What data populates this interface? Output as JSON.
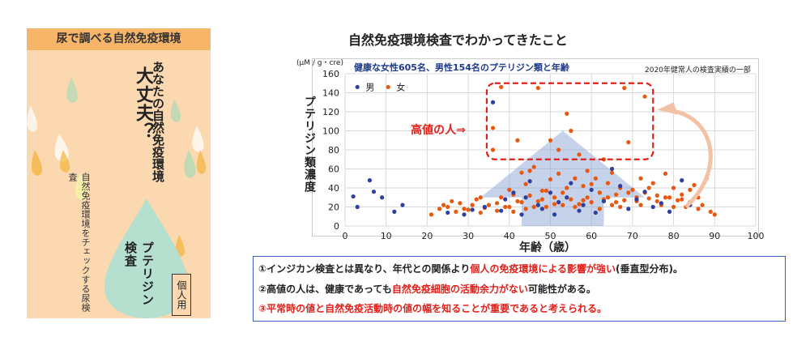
{
  "leaflet": {
    "header": "尿で調べる自然免疫環境",
    "big_text": "大丈夫？",
    "mid_text": "あなたの自然免疫環境",
    "small_text": "自然免疫環境をチェックする尿検査",
    "bold_text": "プテリジン検査",
    "badge": "個人用",
    "colors": {
      "background": "#fbd8b0",
      "header": "#f7b569",
      "drop_large": "#b5dfcf"
    }
  },
  "chart": {
    "title": "自然免疫環境検査でわかってきたこと",
    "unit": "(μM / g・cre)",
    "subtitle": "健康な女性605名、男性154名のプテリジン類と年齢",
    "note": "2020年健常人の検査実績の一部",
    "ylabel": "プテリジン類濃度",
    "xlabel": "年齢（歳）",
    "annotation": "高値の人⇒",
    "legend_male": "男",
    "legend_female": "女"
  },
  "chart_data": {
    "type": "scatter",
    "xlabel": "年齢（歳）",
    "ylabel": "プテリジン類濃度",
    "xlim": [
      0,
      100
    ],
    "ylim": [
      0,
      160
    ],
    "xticks": [
      0,
      10,
      20,
      30,
      40,
      50,
      60,
      70,
      80,
      90,
      100
    ],
    "yticks": [
      0,
      20,
      40,
      60,
      80,
      100,
      120,
      140,
      160
    ],
    "grid": true,
    "legend_position": "top-left",
    "series": [
      {
        "name": "男",
        "color": "#2e3f9e",
        "points": [
          [
            2,
            31
          ],
          [
            3,
            20
          ],
          [
            6,
            48
          ],
          [
            7,
            36
          ],
          [
            9,
            30
          ],
          [
            12,
            15
          ],
          [
            14,
            22
          ],
          [
            25,
            14
          ],
          [
            29,
            12
          ],
          [
            31,
            17
          ],
          [
            34,
            20
          ],
          [
            36,
            130
          ],
          [
            38,
            16
          ],
          [
            39,
            28
          ],
          [
            41,
            35
          ],
          [
            43,
            12
          ],
          [
            44,
            30
          ],
          [
            45,
            47
          ],
          [
            47,
            22
          ],
          [
            48,
            18
          ],
          [
            50,
            35
          ],
          [
            51,
            12
          ],
          [
            52,
            25
          ],
          [
            54,
            30
          ],
          [
            55,
            45
          ],
          [
            57,
            16
          ],
          [
            58,
            22
          ],
          [
            60,
            38
          ],
          [
            61,
            14
          ],
          [
            63,
            26
          ],
          [
            65,
            60
          ],
          [
            67,
            42
          ],
          [
            69,
            18
          ],
          [
            71,
            28
          ],
          [
            73,
            36
          ],
          [
            75,
            20
          ],
          [
            77,
            24
          ],
          [
            79,
            15
          ],
          [
            82,
            48
          ],
          [
            84,
            22
          ]
        ]
      },
      {
        "name": "女",
        "color": "#e8590f",
        "points": [
          [
            21,
            12
          ],
          [
            23,
            18
          ],
          [
            25,
            20
          ],
          [
            27,
            15
          ],
          [
            28,
            24
          ],
          [
            30,
            17
          ],
          [
            31,
            22
          ],
          [
            32,
            28
          ],
          [
            33,
            14
          ],
          [
            34,
            19
          ],
          [
            35,
            22
          ],
          [
            36,
            103
          ],
          [
            36,
            80
          ],
          [
            37,
            16
          ],
          [
            38,
            30
          ],
          [
            38,
            146
          ],
          [
            40,
            20
          ],
          [
            40,
            38
          ],
          [
            41,
            15
          ],
          [
            42,
            26
          ],
          [
            42,
            90
          ],
          [
            43,
            56
          ],
          [
            44,
            18
          ],
          [
            45,
            32
          ],
          [
            45,
            58
          ],
          [
            46,
            62
          ],
          [
            47,
            26
          ],
          [
            47,
            145
          ],
          [
            48,
            37
          ],
          [
            49,
            20
          ],
          [
            50,
            49
          ],
          [
            50,
            90
          ],
          [
            51,
            30
          ],
          [
            52,
            55
          ],
          [
            52,
            80
          ],
          [
            53,
            22
          ],
          [
            54,
            40
          ],
          [
            54,
            118
          ],
          [
            55,
            28
          ],
          [
            55,
            100
          ],
          [
            56,
            50
          ],
          [
            57,
            23
          ],
          [
            57,
            75
          ],
          [
            58,
            42
          ],
          [
            59,
            30
          ],
          [
            59,
            58
          ],
          [
            60,
            25
          ],
          [
            61,
            50
          ],
          [
            62,
            35
          ],
          [
            63,
            28
          ],
          [
            63,
            70
          ],
          [
            64,
            45
          ],
          [
            65,
            22
          ],
          [
            65,
            56
          ],
          [
            66,
            33
          ],
          [
            67,
            40
          ],
          [
            68,
            27
          ],
          [
            68,
            145
          ],
          [
            69,
            88
          ],
          [
            70,
            38
          ],
          [
            71,
            26
          ],
          [
            72,
            50
          ],
          [
            73,
            35
          ],
          [
            73,
            136
          ],
          [
            74,
            29
          ],
          [
            75,
            45
          ],
          [
            76,
            32
          ],
          [
            77,
            22
          ],
          [
            78,
            55
          ],
          [
            79,
            30
          ],
          [
            80,
            40
          ],
          [
            81,
            27
          ],
          [
            82,
            33
          ],
          [
            83,
            20
          ],
          [
            84,
            25
          ],
          [
            85,
            43
          ],
          [
            86,
            18
          ],
          [
            88,
            50
          ],
          [
            89,
            15
          ],
          [
            90,
            12
          ],
          [
            24,
            22
          ],
          [
            26,
            26
          ],
          [
            29,
            18
          ],
          [
            33,
            30
          ],
          [
            37,
            24
          ],
          [
            39,
            20
          ],
          [
            41,
            33
          ],
          [
            43,
            25
          ],
          [
            44,
            44
          ],
          [
            46,
            20
          ],
          [
            48,
            28
          ],
          [
            49,
            37
          ],
          [
            51,
            23
          ],
          [
            53,
            35
          ],
          [
            56,
            20
          ],
          [
            58,
            27
          ],
          [
            60,
            44
          ],
          [
            62,
            18
          ],
          [
            64,
            30
          ],
          [
            66,
            25
          ],
          [
            67,
            20
          ],
          [
            69,
            35
          ],
          [
            71,
            30
          ],
          [
            72,
            22
          ],
          [
            74,
            40
          ],
          [
            76,
            26
          ],
          [
            78,
            30
          ],
          [
            80,
            20
          ],
          [
            82,
            28
          ],
          [
            84,
            38
          ],
          [
            86,
            30
          ],
          [
            87,
            22
          ]
        ]
      }
    ],
    "annotations": [
      "高値の人⇒"
    ]
  },
  "conclusions": {
    "line1_a": "①インジカン検査とは異なり、年代との関係より",
    "line1_b": "個人の免疫環境による影響が強い",
    "line1_c": "(垂直型分布)。",
    "line2_a": "②高値の人は、健康であっても",
    "line2_b": "自然免疫細胞の活動余力がない",
    "line2_c": "可能性がある。",
    "line3": "③平常時の値と自然免疫活動時の値の幅を知ることが重要であると考えられる。"
  }
}
